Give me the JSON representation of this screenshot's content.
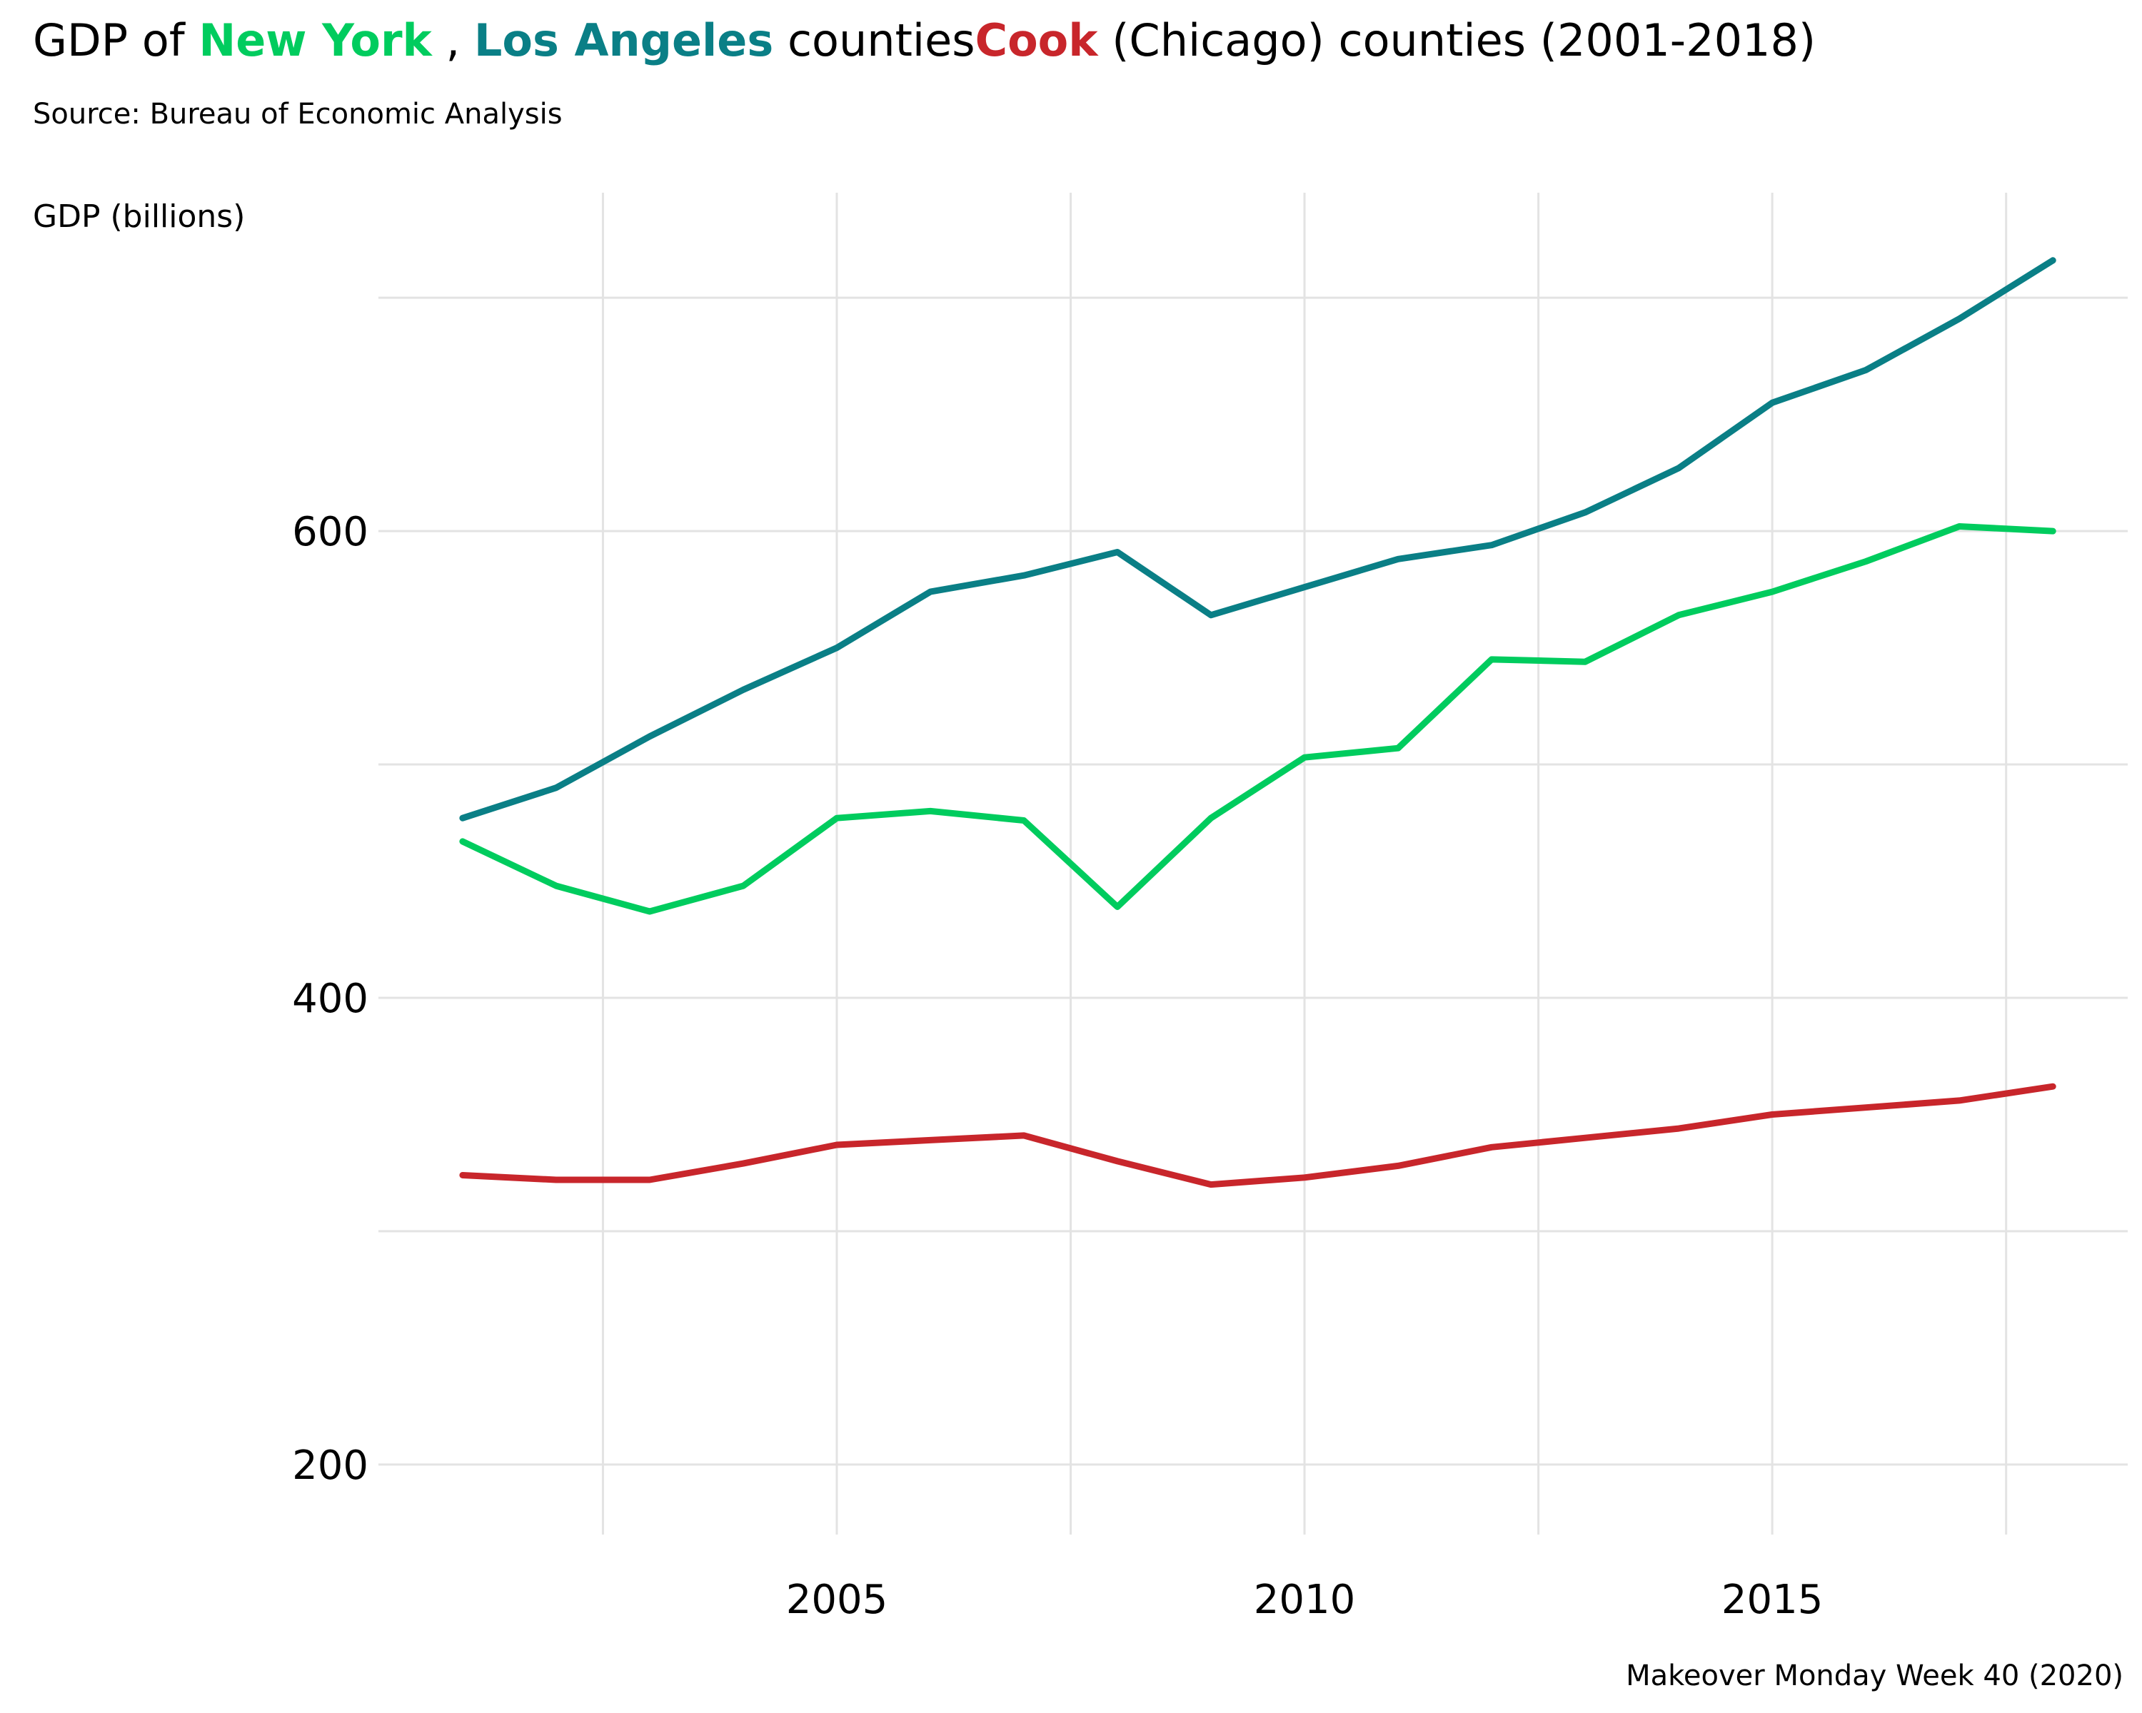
{
  "title": {
    "prefix": "GDP of ",
    "series_a": "New York",
    "sep": " , ",
    "series_b": "Los Angeles",
    "mid": " counties",
    "series_c": "Cook",
    "suffix": " (Chicago) counties (2001-2018)"
  },
  "subtitle": "Source: Bureau of Economic Analysis",
  "caption": "Makeover Monday Week 40 (2020)",
  "colors": {
    "new_york": "#00CC5E",
    "los_angeles": "#0A7F86",
    "cook": "#C8262B",
    "grid": "#E3E3E3"
  },
  "chart_data": {
    "type": "line",
    "ylabel": "GDP (billions)",
    "xlabel": "",
    "x": [
      2001,
      2002,
      2003,
      2004,
      2005,
      2006,
      2007,
      2008,
      2009,
      2010,
      2011,
      2012,
      2013,
      2014,
      2015,
      2016,
      2017,
      2018
    ],
    "series": [
      {
        "name": "Los Angeles",
        "color": "#0A7F86",
        "values": [
          477,
          490,
          512,
          532,
          550,
          574,
          581,
          591,
          564,
          576,
          588,
          594,
          608,
          627,
          655,
          669,
          691,
          716
        ]
      },
      {
        "name": "New York",
        "color": "#00CC5E",
        "values": [
          467,
          448,
          437,
          448,
          477,
          480,
          476,
          439,
          477,
          503,
          507,
          545,
          544,
          564,
          574,
          587,
          602,
          600
        ]
      },
      {
        "name": "Cook",
        "color": "#C8262B",
        "values": [
          324,
          322,
          322,
          329,
          337,
          339,
          341,
          330,
          320,
          323,
          328,
          336,
          340,
          344,
          350,
          353,
          356,
          362
        ]
      }
    ],
    "xlim": [
      2000.1,
      2018.8
    ],
    "ylim": [
      170,
      745
    ],
    "yticks": [
      200,
      400,
      600
    ],
    "ytick_labels": [
      "200",
      "400",
      "600"
    ],
    "xticks": [
      2005,
      2010,
      2015
    ],
    "xtick_labels": [
      "2005",
      "2010",
      "2015"
    ],
    "y_minor_gridlines": [
      300,
      500,
      700
    ],
    "x_minor_gridlines": [
      2002.5,
      2007.5,
      2012.5,
      2017.5
    ],
    "grid": true,
    "legend": "none (series named in title colors)"
  }
}
